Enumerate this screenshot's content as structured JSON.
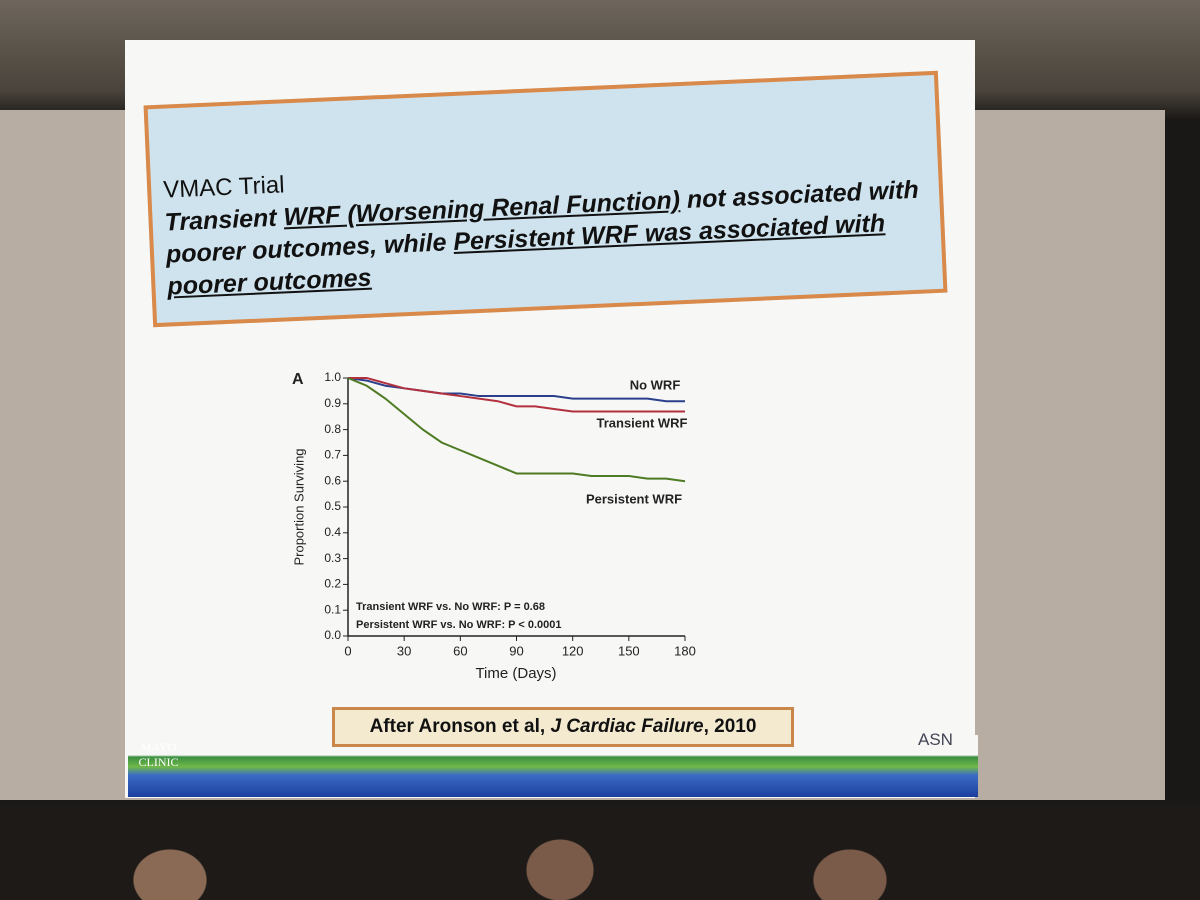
{
  "slide": {
    "kicker": "VMAC Trial",
    "headline": [
      "Transient ",
      "WRF (Worsening Renal Function)",
      " not associated with poorer outcomes, while ",
      "Persistent WRF was associated with poorer outcomes"
    ],
    "citation": [
      "After Aronson et al, ",
      "J Cardiac Failure",
      ",  2010"
    ],
    "logo_left": "MAYO CLINIC",
    "logo_right": "ASN"
  },
  "chart_data": {
    "type": "line",
    "panel_label": "A",
    "y_label": "Proportion Surviving",
    "x_label": "Time (Days)",
    "annotations": [
      "Transient WRF vs. No WRF: P = 0.68",
      "Persistent WRF vs. No WRF: P < 0.0001"
    ],
    "x": [
      0,
      10,
      20,
      30,
      40,
      50,
      60,
      70,
      80,
      90,
      100,
      110,
      120,
      130,
      140,
      150,
      160,
      170,
      180
    ],
    "series": [
      {
        "name": "No WRF",
        "color": "#2b3f8c",
        "values": [
          1.0,
          0.99,
          0.97,
          0.96,
          0.95,
          0.94,
          0.94,
          0.93,
          0.93,
          0.93,
          0.93,
          0.93,
          0.92,
          0.92,
          0.92,
          0.92,
          0.92,
          0.91,
          0.91
        ]
      },
      {
        "name": "Transient WRF",
        "color": "#b3303f",
        "values": [
          1.0,
          1.0,
          0.98,
          0.96,
          0.95,
          0.94,
          0.93,
          0.92,
          0.91,
          0.89,
          0.89,
          0.88,
          0.87,
          0.87,
          0.87,
          0.87,
          0.87,
          0.87,
          0.87
        ]
      },
      {
        "name": "Persistent WRF",
        "color": "#4d7a22",
        "values": [
          1.0,
          0.97,
          0.92,
          0.86,
          0.8,
          0.75,
          0.72,
          0.69,
          0.66,
          0.63,
          0.63,
          0.63,
          0.63,
          0.62,
          0.62,
          0.62,
          0.61,
          0.61,
          0.6
        ]
      }
    ],
    "xlim": [
      0,
      180
    ],
    "xticks": [
      0,
      30,
      60,
      90,
      120,
      150,
      180
    ],
    "ylim": [
      0,
      1.0
    ],
    "yticks": [
      {
        "value": 0,
        "label": "0.0"
      },
      0.1,
      0.2,
      0.3,
      0.4,
      0.5,
      0.6,
      0.7,
      0.8,
      0.9,
      {
        "value": 1.0,
        "label": "1.0"
      }
    ]
  }
}
